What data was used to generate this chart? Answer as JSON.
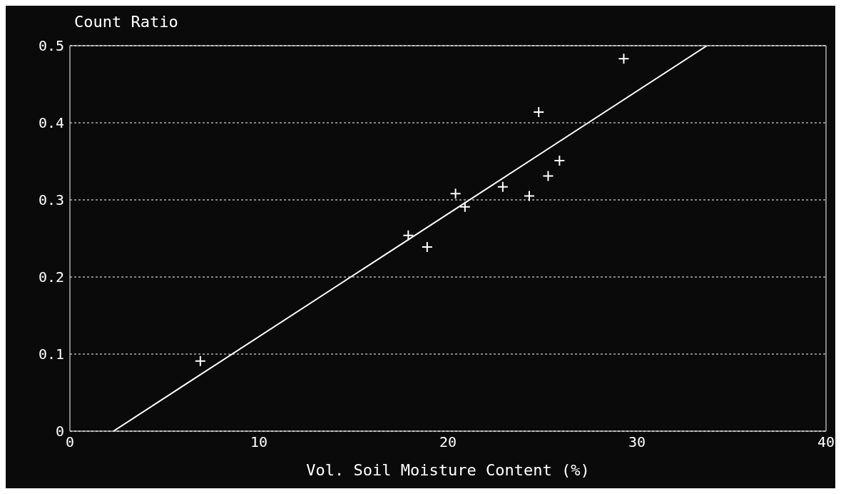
{
  "chart_data": {
    "type": "scatter",
    "ylabel": "Count Ratio",
    "xlabel": "Vol. Soil Moisture Content (%)",
    "xlim": [
      0,
      40
    ],
    "xticks": [
      0,
      10,
      20,
      30,
      40
    ],
    "ylim": [
      0,
      0.5
    ],
    "yticks": [
      0,
      0.1,
      0.2,
      0.3,
      0.4,
      0.5
    ],
    "grid": "y",
    "legend": false,
    "series": [
      {
        "type": "scatter",
        "color": "#ffffff",
        "marker": "cross",
        "x": [
          6.9,
          17.9,
          18.9,
          20.4,
          20.9,
          22.9,
          24.3,
          24.8,
          25.3,
          25.9,
          29.3
        ],
        "values": [
          0.091,
          0.254,
          0.239,
          0.308,
          0.291,
          0.317,
          0.305,
          0.414,
          0.331,
          0.351,
          0.483
        ]
      },
      {
        "type": "line",
        "color": "#ffffff",
        "marker": "none",
        "line_style": "solid",
        "x": [
          2.3,
          33.7
        ],
        "values": [
          0,
          0.5
        ]
      }
    ]
  }
}
